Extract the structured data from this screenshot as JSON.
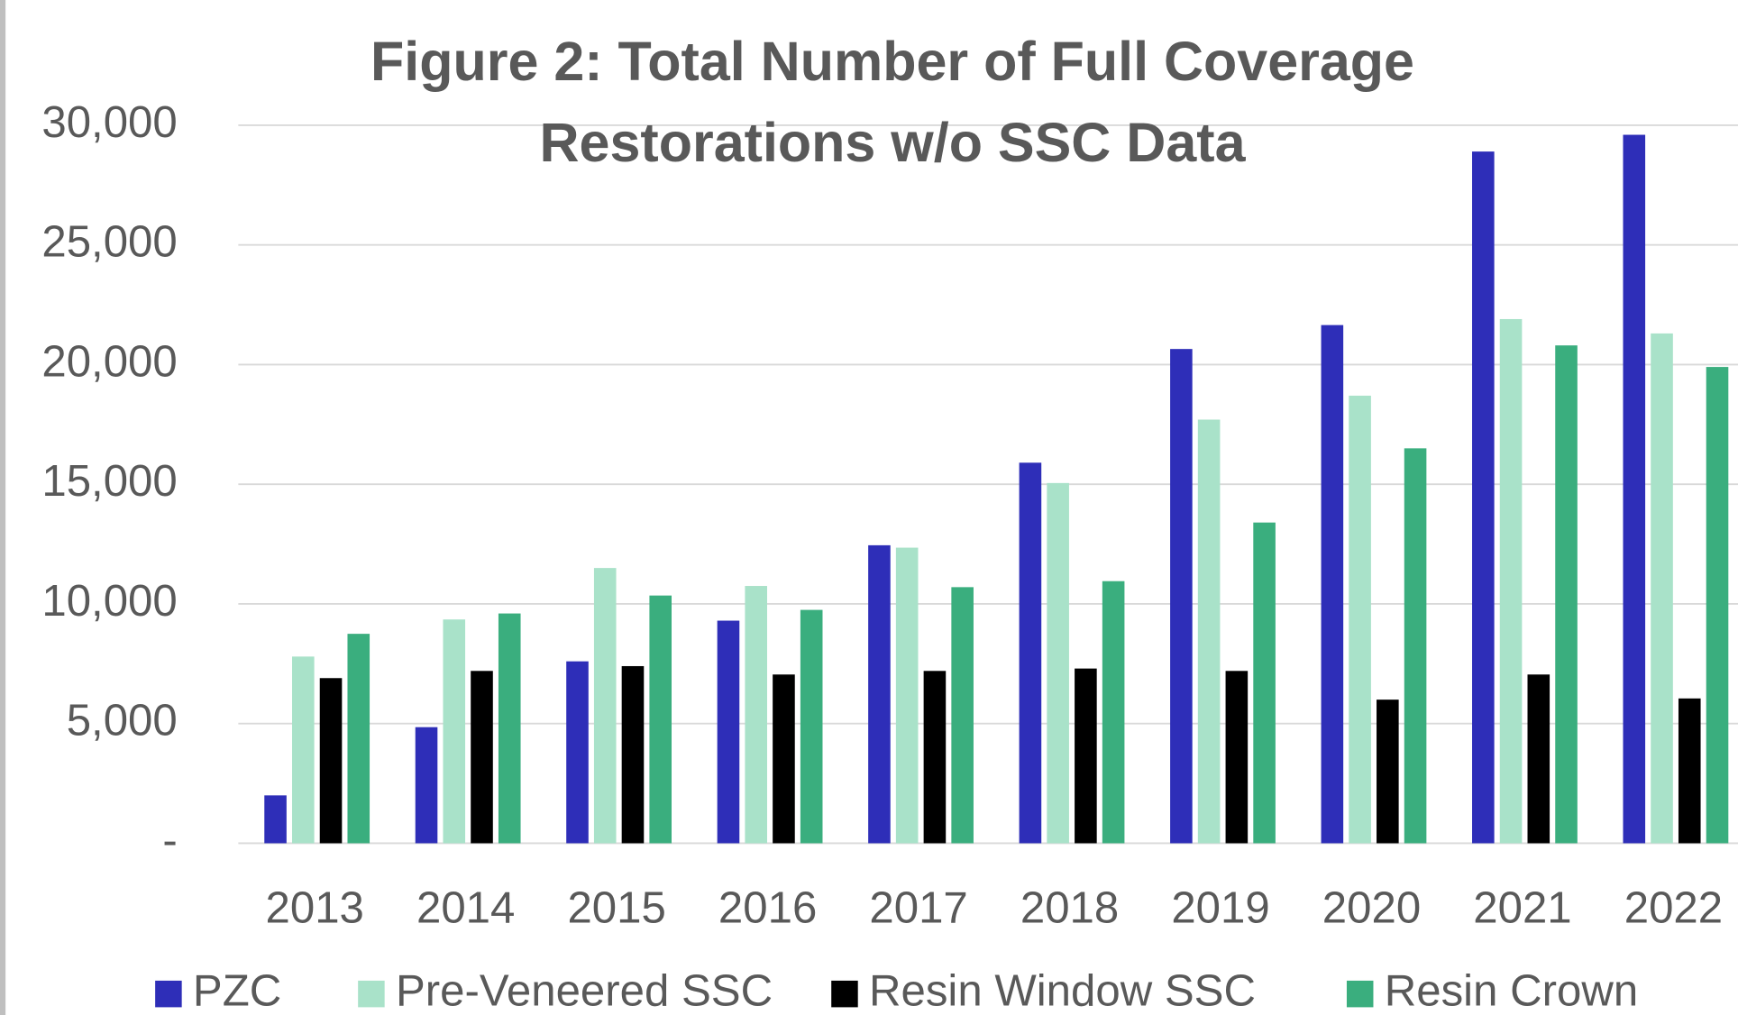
{
  "chart_data": {
    "type": "bar",
    "title": "Figure 2: Total Number of Full Coverage Restorations w/o SSC Data",
    "categories": [
      "2013",
      "2014",
      "2015",
      "2016",
      "2017",
      "2018",
      "2019",
      "2020",
      "2021",
      "2022"
    ],
    "series": [
      {
        "name": "PZC",
        "color": "#2e2eb8",
        "values": [
          2000,
          4850,
          7600,
          9300,
          12450,
          15900,
          20650,
          21650,
          28900,
          29600
        ]
      },
      {
        "name": "Pre-Veneered SSC",
        "color": "#a9e2c9",
        "values": [
          7800,
          9350,
          11500,
          10750,
          12350,
          15050,
          17700,
          18700,
          21900,
          21300
        ]
      },
      {
        "name": "Resin Window SSC",
        "color": "#000000",
        "values": [
          6900,
          7200,
          7400,
          7050,
          7200,
          7300,
          7200,
          6000,
          7050,
          6050
        ]
      },
      {
        "name": "Resin Crown",
        "color": "#3aae7e",
        "values": [
          8750,
          9600,
          10350,
          9750,
          10700,
          10950,
          13400,
          16500,
          20800,
          19900
        ]
      }
    ],
    "ylim": [
      0,
      30000
    ],
    "yticks": [
      {
        "value": 0,
        "label": "-"
      },
      {
        "value": 5000,
        "label": "5,000"
      },
      {
        "value": 10000,
        "label": "10,000"
      },
      {
        "value": 15000,
        "label": "15,000"
      },
      {
        "value": 20000,
        "label": "20,000"
      },
      {
        "value": 25000,
        "label": "25,000"
      },
      {
        "value": 30000,
        "label": "30,000"
      }
    ],
    "grid": true,
    "legend": "bottom"
  }
}
